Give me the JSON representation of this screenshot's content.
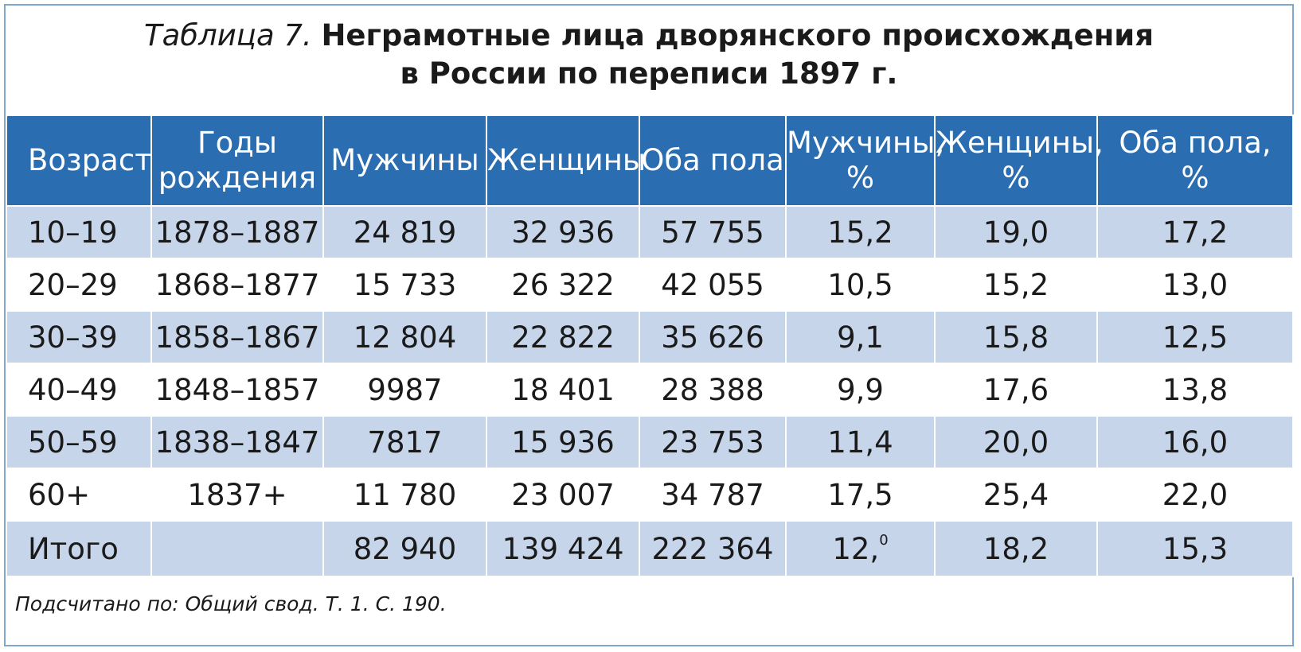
{
  "title": {
    "label": "Таблица 7.",
    "line1": "Неграмотные лица дворянского происхождения",
    "line2": "в России по переписи 1897 г."
  },
  "headers": [
    [
      "Возраст"
    ],
    [
      "Годы",
      "рождения"
    ],
    [
      "Мужчины"
    ],
    [
      "Женщины"
    ],
    [
      "Оба пола"
    ],
    [
      "Мужчины,",
      "%"
    ],
    [
      "Женщины,",
      "%"
    ],
    [
      "Оба пола,",
      "%"
    ]
  ],
  "rows": [
    [
      "10–19",
      "1878–1887",
      "24 819",
      "32 936",
      "57 755",
      "15,2",
      "19,0",
      "17,2"
    ],
    [
      "20–29",
      "1868–1877",
      "15 733",
      "26 322",
      "42 055",
      "10,5",
      "15,2",
      "13,0"
    ],
    [
      "30–39",
      "1858–1867",
      "12 804",
      "22 822",
      "35 626",
      "9,1",
      "15,8",
      "12,5"
    ],
    [
      "40–49",
      "1848–1857",
      "9987",
      "18 401",
      "28 388",
      "9,9",
      "17,6",
      "13,8"
    ],
    [
      "50–59",
      "1838–1847",
      "7817",
      "15 936",
      "23 753",
      "11,4",
      "20,0",
      "16,0"
    ],
    [
      "60+",
      "1837+",
      "11 780",
      "23 007",
      "34 787",
      "17,5",
      "25,4",
      "22,0"
    ]
  ],
  "total": {
    "label": "Итого",
    "birth_years": "",
    "men": "82 940",
    "women": "139 424",
    "both": "222 364",
    "men_pct_main": "12,",
    "men_pct_sup": "0",
    "women_pct": "18,2",
    "both_pct": "15,3"
  },
  "source": "Подсчитано по: Общий свод. Т. 1. С. 190.",
  "colors": {
    "header_bg": "#2a6db1",
    "row_shade": "#c6d5ea",
    "frame_border": "#7ea6cf"
  }
}
